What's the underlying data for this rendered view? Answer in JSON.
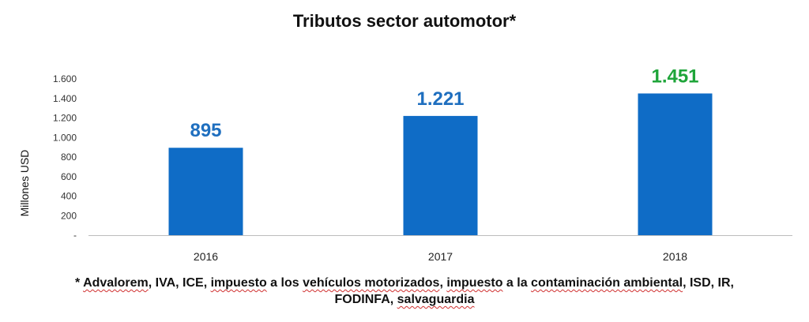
{
  "chart_data": {
    "type": "bar",
    "title": "Tributos sector automotor*",
    "ylabel": "Millones USD",
    "xlabel": "",
    "categories": [
      "2016",
      "2017",
      "2018"
    ],
    "values": [
      895,
      1221,
      1451
    ],
    "value_labels": [
      "895",
      "1.221",
      "1.451"
    ],
    "value_label_colors": [
      "#1f6fbf",
      "#1f6fbf",
      "#1fa53a"
    ],
    "bar_color": "#0f6cc6",
    "ylim": [
      0,
      1600
    ],
    "yticks": [
      0,
      200,
      400,
      600,
      800,
      1000,
      1200,
      1400,
      1600
    ],
    "ytick_labels": [
      "-",
      "200",
      "400",
      "600",
      "800",
      "1.000",
      "1.200",
      "1.400",
      "1.600"
    ],
    "grid": false,
    "legend": "none"
  },
  "footnote": {
    "star": "* ",
    "advalorem": "Advalorem",
    "p1": ", IVA, ICE, ",
    "impuesto1": "impuesto",
    "p2": " a los ",
    "vehiculos": "vehículos motorizados",
    "p3": ", ",
    "impuesto2": "impuesto",
    "p4": " a la ",
    "contaminacion": "contaminación ambiental",
    "p5": ", ISD, IR,",
    "fodinfa": "FODINFA",
    "p6": ", ",
    "salvaguardia": "salvaguardia"
  }
}
